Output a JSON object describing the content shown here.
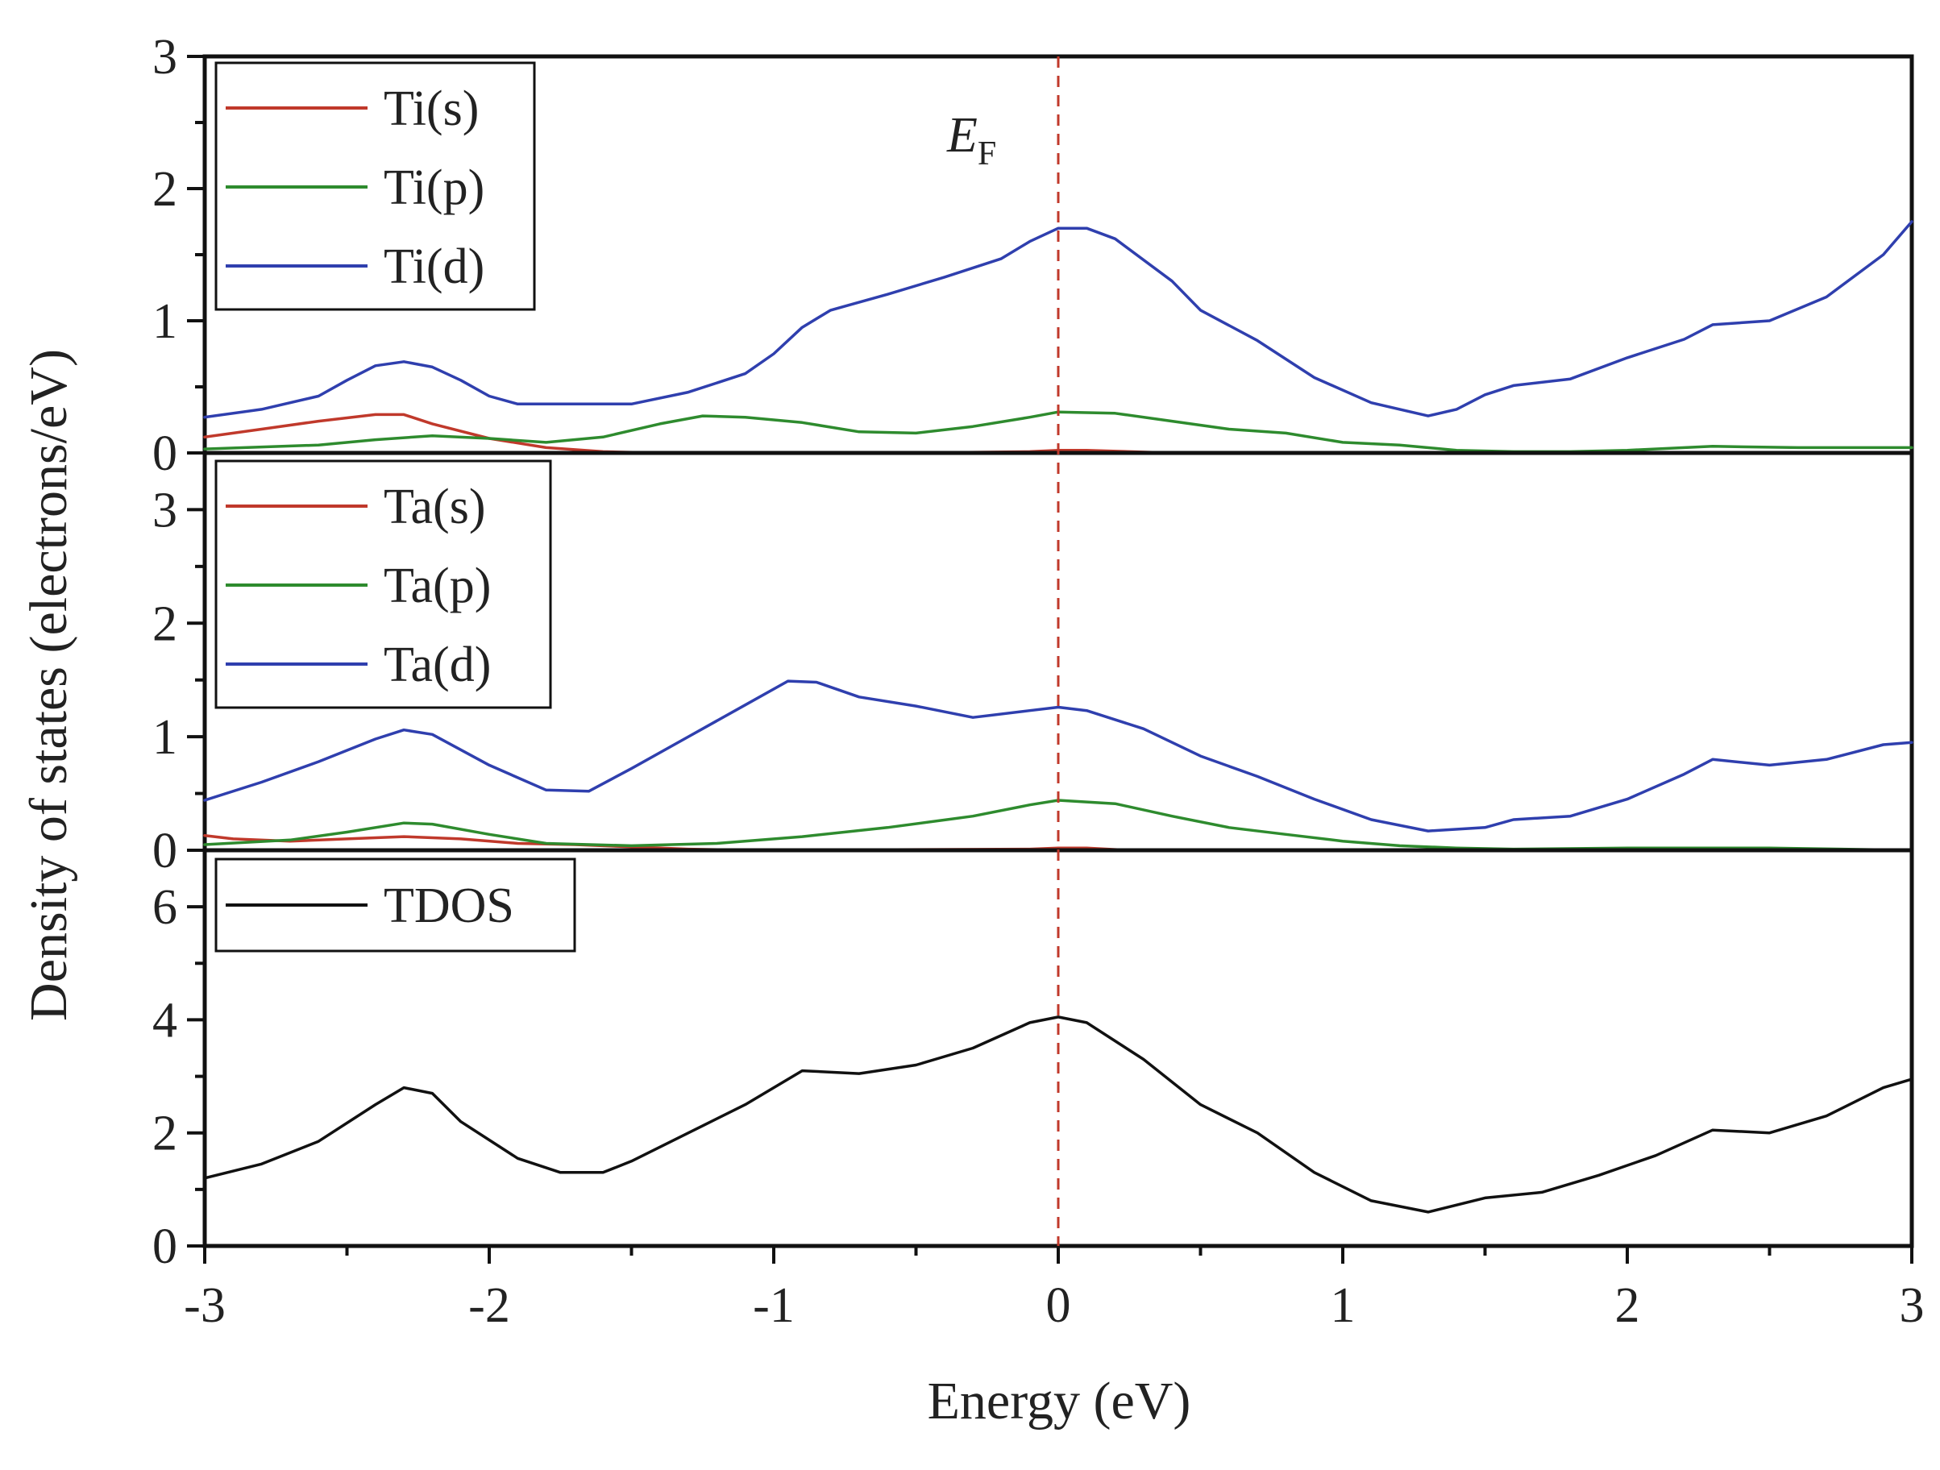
{
  "figure": {
    "xlabel": "Energy (eV)",
    "ylabel": "Density of states (electrons/eV)",
    "fermi_label": "E",
    "fermi_subscript": "F",
    "fermi_energy": 0
  },
  "chart_data": [
    {
      "type": "line",
      "panel": "top",
      "title": "",
      "xlabel": "Energy (eV)",
      "ylabel": "",
      "xlim": [
        -3,
        3
      ],
      "ylim": [
        0,
        3
      ],
      "x_ticks": [
        "-3",
        "-2",
        "-1",
        "0",
        "1",
        "2",
        "3"
      ],
      "y_ticks": [
        "0",
        "1",
        "2",
        "3"
      ],
      "y_tick_values": [
        0,
        1,
        2,
        3
      ],
      "legend_position": "top-left",
      "series": [
        {
          "name": "Ti(s)",
          "color": "#c0392b",
          "points": [
            [
              -3,
              0.12
            ],
            [
              -2.8,
              0.18
            ],
            [
              -2.6,
              0.24
            ],
            [
              -2.4,
              0.29
            ],
            [
              -2.3,
              0.29
            ],
            [
              -2.2,
              0.22
            ],
            [
              -2.0,
              0.11
            ],
            [
              -1.8,
              0.04
            ],
            [
              -1.6,
              0.01
            ],
            [
              -1.4,
              0.0
            ],
            [
              -0.5,
              0.0
            ],
            [
              -0.1,
              0.01
            ],
            [
              0,
              0.02
            ],
            [
              0.1,
              0.02
            ],
            [
              0.25,
              0.01
            ],
            [
              0.4,
              0.0
            ],
            [
              3,
              0.0
            ]
          ]
        },
        {
          "name": "Ti(p)",
          "color": "#2e8b2e",
          "points": [
            [
              -3,
              0.03
            ],
            [
              -2.6,
              0.06
            ],
            [
              -2.4,
              0.1
            ],
            [
              -2.2,
              0.13
            ],
            [
              -2.0,
              0.11
            ],
            [
              -1.8,
              0.08
            ],
            [
              -1.6,
              0.12
            ],
            [
              -1.4,
              0.22
            ],
            [
              -1.25,
              0.28
            ],
            [
              -1.1,
              0.27
            ],
            [
              -0.9,
              0.23
            ],
            [
              -0.7,
              0.16
            ],
            [
              -0.5,
              0.15
            ],
            [
              -0.3,
              0.2
            ],
            [
              -0.1,
              0.27
            ],
            [
              0,
              0.31
            ],
            [
              0.2,
              0.3
            ],
            [
              0.4,
              0.24
            ],
            [
              0.6,
              0.18
            ],
            [
              0.8,
              0.15
            ],
            [
              1.0,
              0.08
            ],
            [
              1.2,
              0.06
            ],
            [
              1.4,
              0.02
            ],
            [
              1.6,
              0.01
            ],
            [
              1.8,
              0.01
            ],
            [
              2.0,
              0.02
            ],
            [
              2.3,
              0.05
            ],
            [
              2.6,
              0.04
            ],
            [
              3,
              0.04
            ]
          ]
        },
        {
          "name": "Ti(d)",
          "color": "#2f3fae",
          "points": [
            [
              -3,
              0.27
            ],
            [
              -2.8,
              0.33
            ],
            [
              -2.6,
              0.43
            ],
            [
              -2.5,
              0.55
            ],
            [
              -2.4,
              0.66
            ],
            [
              -2.3,
              0.69
            ],
            [
              -2.2,
              0.65
            ],
            [
              -2.1,
              0.55
            ],
            [
              -2.0,
              0.43
            ],
            [
              -1.9,
              0.37
            ],
            [
              -1.7,
              0.37
            ],
            [
              -1.5,
              0.37
            ],
            [
              -1.3,
              0.46
            ],
            [
              -1.1,
              0.6
            ],
            [
              -1.0,
              0.75
            ],
            [
              -0.9,
              0.95
            ],
            [
              -0.8,
              1.08
            ],
            [
              -0.6,
              1.2
            ],
            [
              -0.4,
              1.33
            ],
            [
              -0.2,
              1.47
            ],
            [
              -0.1,
              1.6
            ],
            [
              0,
              1.7
            ],
            [
              0.1,
              1.7
            ],
            [
              0.2,
              1.62
            ],
            [
              0.4,
              1.3
            ],
            [
              0.5,
              1.08
            ],
            [
              0.7,
              0.85
            ],
            [
              0.9,
              0.57
            ],
            [
              1.1,
              0.38
            ],
            [
              1.3,
              0.28
            ],
            [
              1.4,
              0.33
            ],
            [
              1.5,
              0.44
            ],
            [
              1.6,
              0.51
            ],
            [
              1.8,
              0.56
            ],
            [
              2.0,
              0.72
            ],
            [
              2.2,
              0.86
            ],
            [
              2.3,
              0.97
            ],
            [
              2.5,
              1.0
            ],
            [
              2.7,
              1.18
            ],
            [
              2.9,
              1.5
            ],
            [
              3,
              1.75
            ]
          ]
        }
      ]
    },
    {
      "type": "line",
      "panel": "middle",
      "title": "",
      "xlabel": "Energy (eV)",
      "ylabel": "",
      "xlim": [
        -3,
        3
      ],
      "ylim": [
        0,
        3.5
      ],
      "x_ticks": [
        "-3",
        "-2",
        "-1",
        "0",
        "1",
        "2",
        "3"
      ],
      "y_ticks": [
        "0",
        "1",
        "2",
        "3"
      ],
      "y_tick_values": [
        0,
        1,
        2,
        3
      ],
      "legend_position": "top-left",
      "series": [
        {
          "name": "Ta(s)",
          "color": "#c0392b",
          "points": [
            [
              -3,
              0.13
            ],
            [
              -2.9,
              0.1
            ],
            [
              -2.7,
              0.08
            ],
            [
              -2.5,
              0.1
            ],
            [
              -2.3,
              0.12
            ],
            [
              -2.1,
              0.1
            ],
            [
              -1.9,
              0.06
            ],
            [
              -1.7,
              0.05
            ],
            [
              -1.5,
              0.03
            ],
            [
              -1.3,
              0.01
            ],
            [
              -1.1,
              0.0
            ],
            [
              -0.1,
              0.01
            ],
            [
              0,
              0.02
            ],
            [
              0.1,
              0.02
            ],
            [
              0.25,
              0.0
            ],
            [
              3,
              0.0
            ]
          ]
        },
        {
          "name": "Ta(p)",
          "color": "#2e8b2e",
          "points": [
            [
              -3,
              0.05
            ],
            [
              -2.7,
              0.09
            ],
            [
              -2.5,
              0.16
            ],
            [
              -2.3,
              0.24
            ],
            [
              -2.2,
              0.23
            ],
            [
              -2.0,
              0.14
            ],
            [
              -1.8,
              0.06
            ],
            [
              -1.5,
              0.04
            ],
            [
              -1.2,
              0.06
            ],
            [
              -0.9,
              0.12
            ],
            [
              -0.6,
              0.2
            ],
            [
              -0.3,
              0.3
            ],
            [
              -0.1,
              0.4
            ],
            [
              0,
              0.44
            ],
            [
              0.2,
              0.41
            ],
            [
              0.4,
              0.3
            ],
            [
              0.6,
              0.2
            ],
            [
              0.8,
              0.14
            ],
            [
              1.0,
              0.08
            ],
            [
              1.2,
              0.04
            ],
            [
              1.4,
              0.02
            ],
            [
              1.6,
              0.01
            ],
            [
              2.0,
              0.02
            ],
            [
              2.5,
              0.02
            ],
            [
              3,
              0.0
            ]
          ]
        },
        {
          "name": "Ta(d)",
          "color": "#2f3fae",
          "points": [
            [
              -3,
              0.44
            ],
            [
              -2.8,
              0.6
            ],
            [
              -2.6,
              0.78
            ],
            [
              -2.4,
              0.98
            ],
            [
              -2.3,
              1.06
            ],
            [
              -2.2,
              1.02
            ],
            [
              -2.0,
              0.75
            ],
            [
              -1.8,
              0.53
            ],
            [
              -1.65,
              0.52
            ],
            [
              -1.5,
              0.72
            ],
            [
              -1.3,
              1.0
            ],
            [
              -1.1,
              1.28
            ],
            [
              -0.95,
              1.49
            ],
            [
              -0.85,
              1.48
            ],
            [
              -0.7,
              1.35
            ],
            [
              -0.5,
              1.27
            ],
            [
              -0.3,
              1.17
            ],
            [
              -0.1,
              1.23
            ],
            [
              0,
              1.26
            ],
            [
              0.1,
              1.23
            ],
            [
              0.3,
              1.07
            ],
            [
              0.5,
              0.83
            ],
            [
              0.7,
              0.65
            ],
            [
              0.9,
              0.45
            ],
            [
              1.1,
              0.27
            ],
            [
              1.3,
              0.17
            ],
            [
              1.5,
              0.2
            ],
            [
              1.6,
              0.27
            ],
            [
              1.8,
              0.3
            ],
            [
              2.0,
              0.45
            ],
            [
              2.2,
              0.67
            ],
            [
              2.3,
              0.8
            ],
            [
              2.5,
              0.75
            ],
            [
              2.7,
              0.8
            ],
            [
              2.9,
              0.93
            ],
            [
              3,
              0.95
            ]
          ]
        }
      ]
    },
    {
      "type": "line",
      "panel": "bottom",
      "title": "",
      "xlabel": "Energy (eV)",
      "ylabel": "",
      "xlim": [
        -3,
        3
      ],
      "ylim": [
        0,
        7
      ],
      "x_ticks": [
        "-3",
        "-2",
        "-1",
        "0",
        "1",
        "2",
        "3"
      ],
      "y_ticks": [
        "0",
        "2",
        "4",
        "6"
      ],
      "y_tick_values": [
        0,
        2,
        4,
        6
      ],
      "legend_position": "top-left",
      "series": [
        {
          "name": "TDOS",
          "color": "#111111",
          "points": [
            [
              -3,
              1.2
            ],
            [
              -2.8,
              1.45
            ],
            [
              -2.6,
              1.85
            ],
            [
              -2.4,
              2.5
            ],
            [
              -2.3,
              2.8
            ],
            [
              -2.2,
              2.7
            ],
            [
              -2.1,
              2.2
            ],
            [
              -1.9,
              1.55
            ],
            [
              -1.75,
              1.3
            ],
            [
              -1.6,
              1.3
            ],
            [
              -1.5,
              1.5
            ],
            [
              -1.3,
              2.0
            ],
            [
              -1.1,
              2.5
            ],
            [
              -0.9,
              3.1
            ],
            [
              -0.7,
              3.05
            ],
            [
              -0.5,
              3.2
            ],
            [
              -0.3,
              3.5
            ],
            [
              -0.1,
              3.95
            ],
            [
              0,
              4.05
            ],
            [
              0.1,
              3.95
            ],
            [
              0.3,
              3.3
            ],
            [
              0.5,
              2.5
            ],
            [
              0.7,
              2.0
            ],
            [
              0.9,
              1.3
            ],
            [
              1.1,
              0.8
            ],
            [
              1.3,
              0.6
            ],
            [
              1.5,
              0.85
            ],
            [
              1.7,
              0.95
            ],
            [
              1.9,
              1.25
            ],
            [
              2.1,
              1.6
            ],
            [
              2.3,
              2.05
            ],
            [
              2.5,
              2.0
            ],
            [
              2.7,
              2.3
            ],
            [
              2.9,
              2.8
            ],
            [
              3,
              2.95
            ]
          ]
        }
      ]
    }
  ]
}
